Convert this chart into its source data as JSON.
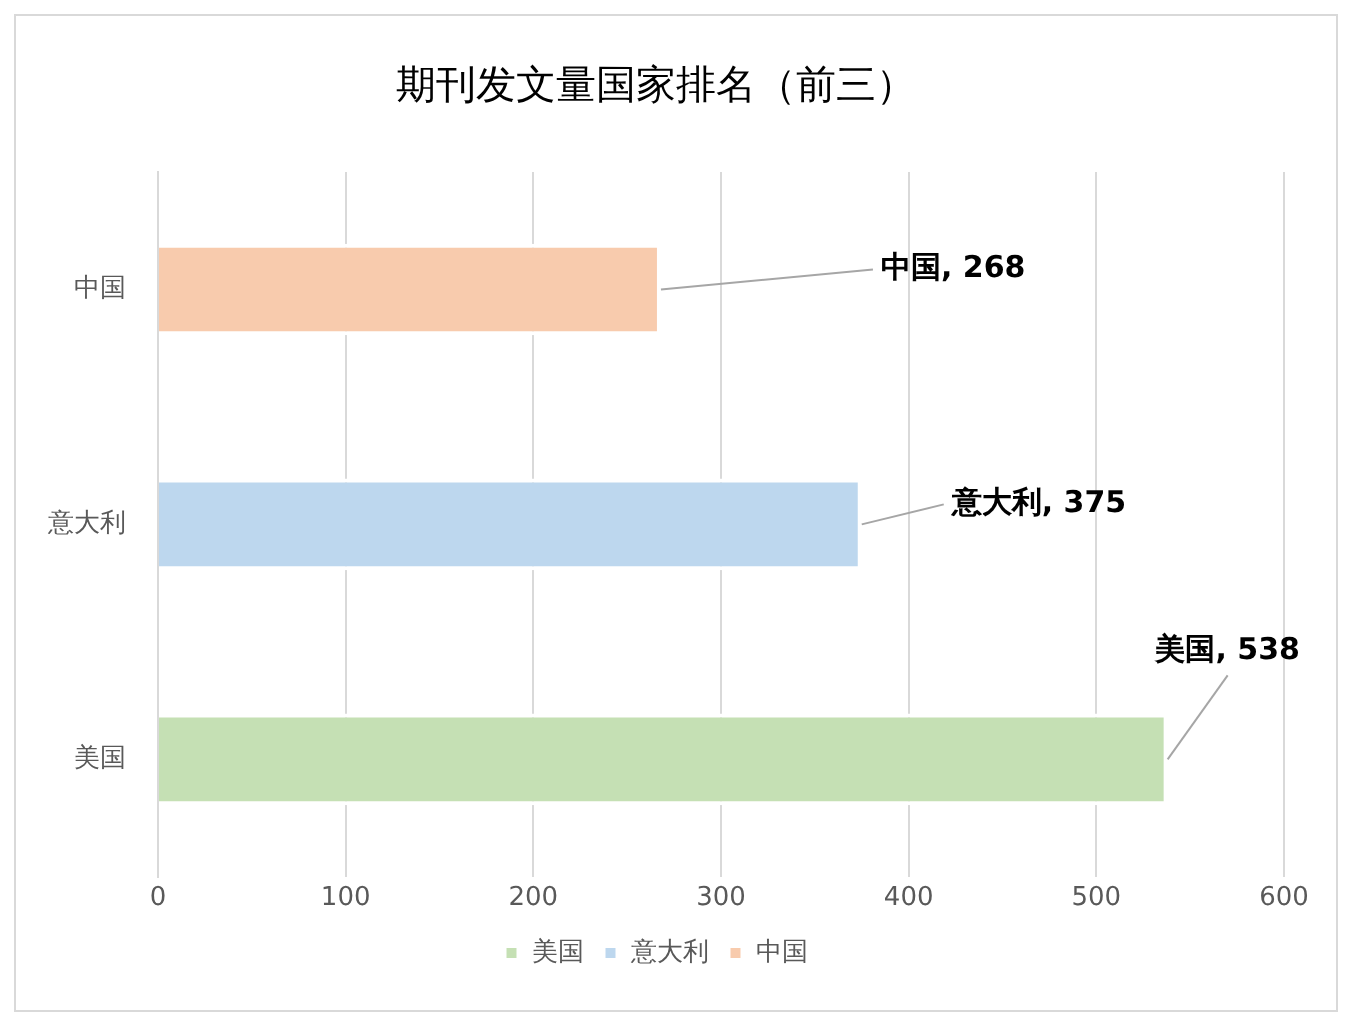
{
  "chart_data": {
    "type": "bar",
    "orientation": "horizontal",
    "stacked": true,
    "title": "期刊发文量国家排名（前三）",
    "categories": [
      "中国",
      "意大利",
      "美国"
    ],
    "series": [
      {
        "name": "美国",
        "color": "#c5e0b4",
        "values": [
          null,
          null,
          538
        ],
        "value_labels": [
          null,
          null,
          "美国, 538"
        ]
      },
      {
        "name": "意大利",
        "color": "#bdd7ee",
        "values": [
          null,
          375,
          null
        ],
        "value_labels": [
          null,
          "意大利, 375",
          null
        ]
      },
      {
        "name": "中国",
        "color": "#f8cbad",
        "values": [
          268,
          null,
          null
        ],
        "value_labels": [
          "中国, 268",
          null,
          null
        ]
      }
    ],
    "xlim": [
      0,
      600
    ],
    "xticks": [
      0,
      100,
      200,
      300,
      400,
      500,
      600
    ],
    "grid": "x",
    "legend": "bottom"
  }
}
